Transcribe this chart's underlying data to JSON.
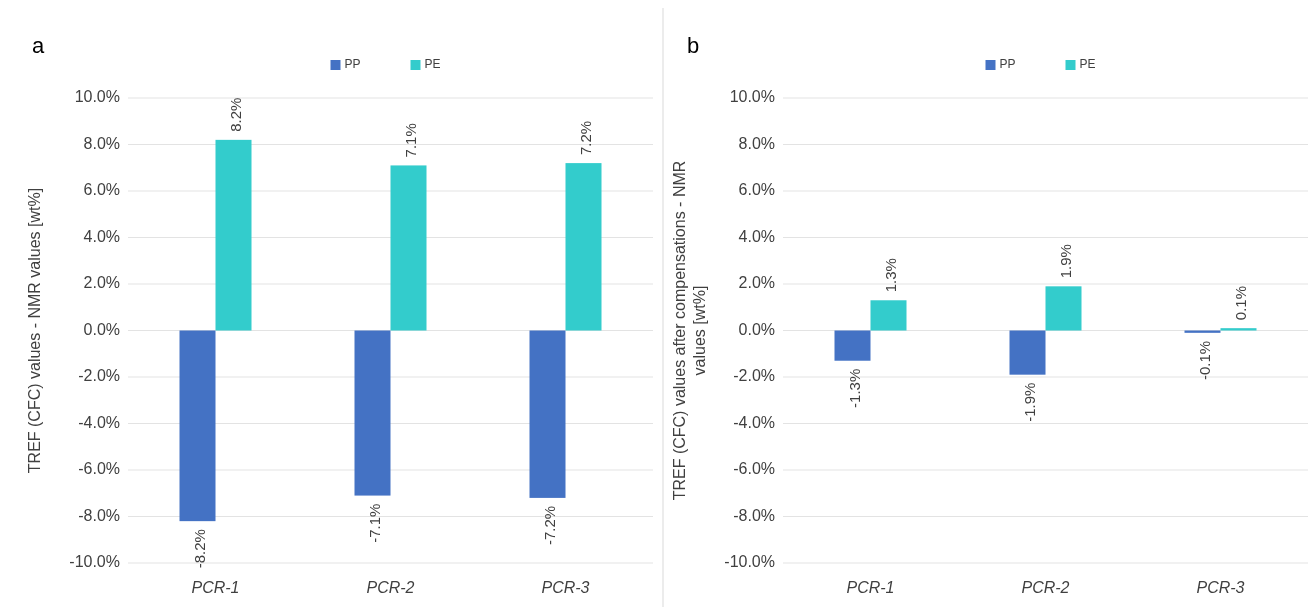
{
  "chart_data": [
    {
      "type": "bar",
      "ylabel": "TREF (CFC) values - NMR values [wt%]",
      "annotations": [
        "a"
      ],
      "categories": [
        "PCR-1",
        "PCR-2",
        "PCR-3"
      ],
      "series": [
        {
          "name": "PP",
          "color": "#4472c4",
          "values": [
            -8.2,
            -7.1,
            -7.2
          ],
          "value_labels": [
            "-8.2%",
            "-7.1%",
            "-7.2%"
          ]
        },
        {
          "name": "PE",
          "color": "#33cccc",
          "values": [
            8.2,
            7.1,
            7.2
          ],
          "value_labels": [
            "8.2%",
            "7.1%",
            "7.2%"
          ]
        }
      ],
      "ylim": [
        -10,
        10
      ],
      "yticks": [
        {
          "value": -10,
          "label": "-10.0%"
        },
        {
          "value": -8,
          "label": "-8.0%"
        },
        {
          "value": -6,
          "label": "-6.0%"
        },
        {
          "value": -4,
          "label": "-4.0%"
        },
        {
          "value": -2,
          "label": "-2.0%"
        },
        {
          "value": 0,
          "label": "0.0%"
        },
        {
          "value": 2,
          "label": "2.0%"
        },
        {
          "value": 4,
          "label": "4.0%"
        },
        {
          "value": 6,
          "label": "6.0%"
        },
        {
          "value": 8,
          "label": "8.0%"
        },
        {
          "value": 10,
          "label": "10.0%"
        }
      ],
      "grid": "y",
      "legend": "top"
    },
    {
      "type": "bar",
      "ylabel": "TREF (CFC) values after compensations - NMR values [wt%]",
      "annotations": [
        "b"
      ],
      "categories": [
        "PCR-1",
        "PCR-2",
        "PCR-3"
      ],
      "series": [
        {
          "name": "PP",
          "color": "#4472c4",
          "values": [
            -1.3,
            -1.9,
            -0.1
          ],
          "value_labels": [
            "-1.3%",
            "-1.9%",
            "-0.1%"
          ]
        },
        {
          "name": "PE",
          "color": "#33cccc",
          "values": [
            1.3,
            1.9,
            0.1
          ],
          "value_labels": [
            "1.3%",
            "1.9%",
            "0.1%"
          ]
        }
      ],
      "ylim": [
        -10,
        10
      ],
      "yticks": [
        {
          "value": -10,
          "label": "-10.0%"
        },
        {
          "value": -8,
          "label": "-8.0%"
        },
        {
          "value": -6,
          "label": "-6.0%"
        },
        {
          "value": -4,
          "label": "-4.0%"
        },
        {
          "value": -2,
          "label": "-2.0%"
        },
        {
          "value": 0,
          "label": "0.0%"
        },
        {
          "value": 2,
          "label": "2.0%"
        },
        {
          "value": 4,
          "label": "4.0%"
        },
        {
          "value": 6,
          "label": "6.0%"
        },
        {
          "value": 8,
          "label": "8.0%"
        },
        {
          "value": 10,
          "label": "10.0%"
        }
      ],
      "grid": "y",
      "legend": "top"
    }
  ]
}
